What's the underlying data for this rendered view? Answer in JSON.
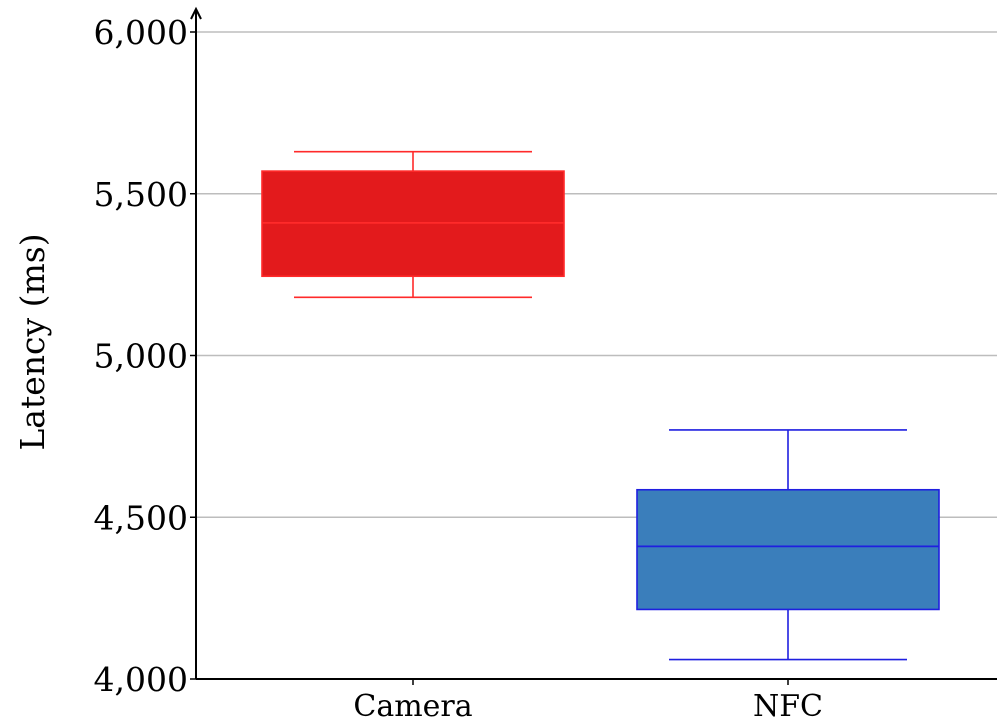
{
  "chart_data": {
    "type": "boxplot",
    "title": "",
    "xlabel": "",
    "ylabel": "Latency (ms)",
    "ylim": [
      4000,
      6000
    ],
    "yticks": [
      4000,
      4500,
      5000,
      5500,
      6000
    ],
    "ytick_labels": [
      "4,000",
      "4,500",
      "5,000",
      "5,500",
      "6,000"
    ],
    "grid": "horizontal",
    "categories": [
      "Camera",
      "NFC"
    ],
    "series": [
      {
        "category": "Camera",
        "whisker_low": 5180,
        "q1": 5245,
        "median": 5410,
        "q3": 5570,
        "whisker_high": 5630,
        "fill": "#e31a1c",
        "stroke": "#ff2a2a"
      },
      {
        "category": "NFC",
        "whisker_low": 4060,
        "q1": 4215,
        "median": 4410,
        "q3": 4585,
        "whisker_high": 4770,
        "fill": "#3a7ebb",
        "stroke": "#1f1fe0"
      }
    ]
  }
}
